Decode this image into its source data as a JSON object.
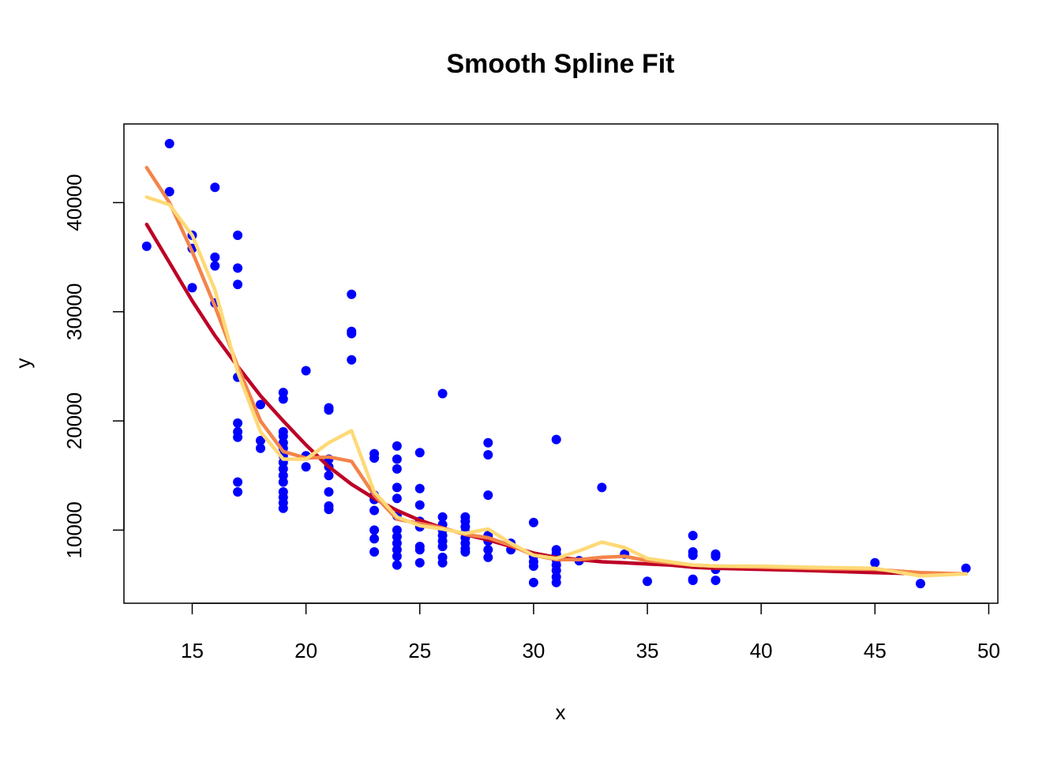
{
  "chart_data": {
    "type": "scatter",
    "title": "Smooth Spline Fit",
    "xlabel": "x",
    "ylabel": "y",
    "xlim": [
      12,
      50.4
    ],
    "ylim": [
      3300,
      47200
    ],
    "xticks": [
      15,
      20,
      25,
      30,
      35,
      40,
      45,
      50
    ],
    "yticks": [
      10000,
      20000,
      30000,
      40000
    ],
    "grid": false,
    "legend": "none",
    "colors": {
      "points": "#0000FF",
      "line1": "#BD0026",
      "line2": "#F3844A",
      "line3": "#FED976"
    },
    "points": [
      [
        13,
        36000
      ],
      [
        14,
        45400
      ],
      [
        14,
        41000
      ],
      [
        15,
        37000
      ],
      [
        15,
        35800
      ],
      [
        15,
        32200
      ],
      [
        16,
        41400
      ],
      [
        16,
        35000
      ],
      [
        16,
        34200
      ],
      [
        16,
        30800
      ],
      [
        17,
        37000
      ],
      [
        17,
        34000
      ],
      [
        17,
        32500
      ],
      [
        17,
        24000
      ],
      [
        17,
        19800
      ],
      [
        17,
        19000
      ],
      [
        17,
        18500
      ],
      [
        17,
        14400
      ],
      [
        17,
        13500
      ],
      [
        18,
        21500
      ],
      [
        18,
        18200
      ],
      [
        18,
        17500
      ],
      [
        19,
        22600
      ],
      [
        19,
        22000
      ],
      [
        19,
        19000
      ],
      [
        19,
        18600
      ],
      [
        19,
        18000
      ],
      [
        19,
        17500
      ],
      [
        19,
        16800
      ],
      [
        19,
        16200
      ],
      [
        19,
        15600
      ],
      [
        19,
        15000
      ],
      [
        19,
        14400
      ],
      [
        19,
        13500
      ],
      [
        19,
        13000
      ],
      [
        19,
        12500
      ],
      [
        19,
        12000
      ],
      [
        20,
        24600
      ],
      [
        20,
        16800
      ],
      [
        20,
        15800
      ],
      [
        21,
        21200
      ],
      [
        21,
        21000
      ],
      [
        21,
        16500
      ],
      [
        21,
        15800
      ],
      [
        21,
        15000
      ],
      [
        21,
        13500
      ],
      [
        21,
        12200
      ],
      [
        21,
        11900
      ],
      [
        22,
        31600
      ],
      [
        22,
        28200
      ],
      [
        22,
        28000
      ],
      [
        22,
        25600
      ],
      [
        23,
        17000
      ],
      [
        23,
        16600
      ],
      [
        23,
        13200
      ],
      [
        23,
        12800
      ],
      [
        23,
        11800
      ],
      [
        23,
        10000
      ],
      [
        23,
        9200
      ],
      [
        23,
        8000
      ],
      [
        24,
        17700
      ],
      [
        24,
        16500
      ],
      [
        24,
        15600
      ],
      [
        24,
        13900
      ],
      [
        24,
        12900
      ],
      [
        24,
        11300
      ],
      [
        24,
        10000
      ],
      [
        24,
        9400
      ],
      [
        24,
        8800
      ],
      [
        24,
        8200
      ],
      [
        24,
        7600
      ],
      [
        24,
        6800
      ],
      [
        25,
        17100
      ],
      [
        25,
        13800
      ],
      [
        25,
        12300
      ],
      [
        25,
        10800
      ],
      [
        25,
        10300
      ],
      [
        25,
        8500
      ],
      [
        25,
        8200
      ],
      [
        25,
        7000
      ],
      [
        26,
        22500
      ],
      [
        26,
        11200
      ],
      [
        26,
        10500
      ],
      [
        26,
        10000
      ],
      [
        26,
        9500
      ],
      [
        26,
        9000
      ],
      [
        26,
        8500
      ],
      [
        26,
        7500
      ],
      [
        26,
        7000
      ],
      [
        27,
        11200
      ],
      [
        27,
        10800
      ],
      [
        27,
        10300
      ],
      [
        27,
        9800
      ],
      [
        27,
        9300
      ],
      [
        27,
        8800
      ],
      [
        27,
        8300
      ],
      [
        27,
        8000
      ],
      [
        28,
        18000
      ],
      [
        28,
        16900
      ],
      [
        28,
        13200
      ],
      [
        28,
        9500
      ],
      [
        28,
        9000
      ],
      [
        28,
        8200
      ],
      [
        28,
        7500
      ],
      [
        29,
        8800
      ],
      [
        29,
        8200
      ],
      [
        30,
        10700
      ],
      [
        30,
        7600
      ],
      [
        30,
        7100
      ],
      [
        30,
        6700
      ],
      [
        30,
        5200
      ],
      [
        31,
        18300
      ],
      [
        31,
        8200
      ],
      [
        31,
        7800
      ],
      [
        31,
        7300
      ],
      [
        31,
        6800
      ],
      [
        31,
        6300
      ],
      [
        31,
        5700
      ],
      [
        31,
        5200
      ],
      [
        32,
        7200
      ],
      [
        33,
        13900
      ],
      [
        34,
        7800
      ],
      [
        35,
        5300
      ],
      [
        37,
        9500
      ],
      [
        37,
        8000
      ],
      [
        37,
        7700
      ],
      [
        37,
        5500
      ],
      [
        37,
        5400
      ],
      [
        38,
        7800
      ],
      [
        38,
        7600
      ],
      [
        38,
        6400
      ],
      [
        38,
        5400
      ],
      [
        45,
        7000
      ],
      [
        47,
        5100
      ],
      [
        49,
        6500
      ]
    ],
    "series": [
      {
        "values": [
          [
            13,
            38000
          ],
          [
            14,
            34500
          ],
          [
            15,
            31000
          ],
          [
            16,
            27800
          ],
          [
            17,
            25000
          ],
          [
            18,
            22300
          ],
          [
            19,
            20000
          ],
          [
            20,
            17800
          ],
          [
            21,
            15800
          ],
          [
            22,
            14200
          ],
          [
            23,
            12900
          ],
          [
            24,
            11800
          ],
          [
            25,
            10900
          ],
          [
            26,
            10200
          ],
          [
            27,
            9600
          ],
          [
            28,
            9100
          ],
          [
            29,
            8500
          ],
          [
            30,
            7900
          ],
          [
            31,
            7500
          ],
          [
            32,
            7300
          ],
          [
            33,
            7100
          ],
          [
            34,
            7000
          ],
          [
            35,
            6900
          ],
          [
            36,
            6800
          ],
          [
            37,
            6600
          ],
          [
            38,
            6500
          ],
          [
            40,
            6400
          ],
          [
            42,
            6300
          ],
          [
            45,
            6100
          ],
          [
            47,
            6000
          ],
          [
            49,
            6000
          ]
        ]
      },
      {
        "values": [
          [
            13,
            43200
          ],
          [
            14,
            40000
          ],
          [
            15,
            35500
          ],
          [
            16,
            30500
          ],
          [
            17,
            25000
          ],
          [
            18,
            20000
          ],
          [
            19,
            17200
          ],
          [
            20,
            16600
          ],
          [
            21,
            16700
          ],
          [
            22,
            16300
          ],
          [
            23,
            13200
          ],
          [
            24,
            11000
          ],
          [
            25,
            10600
          ],
          [
            26,
            10200
          ],
          [
            27,
            9600
          ],
          [
            28,
            9300
          ],
          [
            29,
            8600
          ],
          [
            30,
            7700
          ],
          [
            31,
            7300
          ],
          [
            32,
            7300
          ],
          [
            33,
            7500
          ],
          [
            34,
            7600
          ],
          [
            35,
            7200
          ],
          [
            37,
            6800
          ],
          [
            38,
            6700
          ],
          [
            40,
            6600
          ],
          [
            42,
            6500
          ],
          [
            45,
            6400
          ],
          [
            47,
            6100
          ],
          [
            49,
            6000
          ]
        ]
      },
      {
        "values": [
          [
            13,
            40500
          ],
          [
            14,
            39800
          ],
          [
            15,
            37000
          ],
          [
            16,
            32000
          ],
          [
            17,
            24500
          ],
          [
            18,
            19000
          ],
          [
            19,
            16500
          ],
          [
            20,
            16500
          ],
          [
            21,
            18000
          ],
          [
            22,
            19100
          ],
          [
            23,
            13500
          ],
          [
            24,
            11200
          ],
          [
            25,
            10400
          ],
          [
            26,
            10100
          ],
          [
            27,
            9700
          ],
          [
            28,
            10100
          ],
          [
            29,
            8800
          ],
          [
            30,
            7700
          ],
          [
            31,
            7400
          ],
          [
            32,
            8100
          ],
          [
            33,
            8900
          ],
          [
            34,
            8400
          ],
          [
            35,
            7400
          ],
          [
            37,
            6800
          ],
          [
            38,
            6700
          ],
          [
            40,
            6700
          ],
          [
            42,
            6600
          ],
          [
            45,
            6500
          ],
          [
            47,
            5800
          ],
          [
            49,
            6000
          ]
        ]
      }
    ]
  }
}
